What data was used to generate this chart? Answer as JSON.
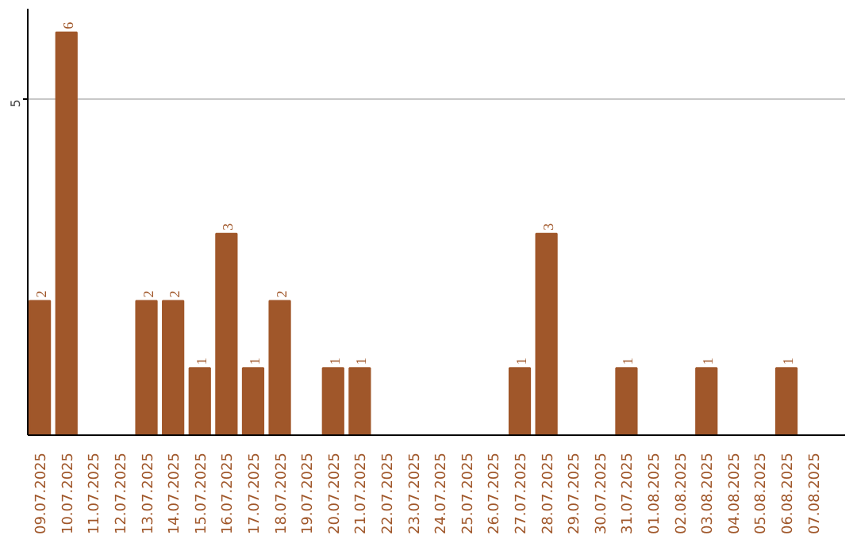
{
  "chart_data": {
    "type": "bar",
    "categories": [
      "09.07.2025",
      "10.07.2025",
      "11.07.2025",
      "12.07.2025",
      "13.07.2025",
      "14.07.2025",
      "15.07.2025",
      "16.07.2025",
      "17.07.2025",
      "18.07.2025",
      "19.07.2025",
      "20.07.2025",
      "21.07.2025",
      "22.07.2025",
      "23.07.2025",
      "24.07.2025",
      "25.07.2025",
      "26.07.2025",
      "27.07.2025",
      "28.07.2025",
      "29.07.2025",
      "30.07.2025",
      "31.07.2025",
      "01.08.2025",
      "02.08.2025",
      "03.08.2025",
      "04.08.2025",
      "05.08.2025",
      "06.08.2025",
      "07.08.2025"
    ],
    "values": [
      2,
      6,
      0,
      0,
      2,
      2,
      1,
      3,
      1,
      2,
      0,
      1,
      1,
      0,
      0,
      0,
      0,
      0,
      1,
      3,
      0,
      0,
      1,
      0,
      0,
      1,
      0,
      0,
      1,
      0
    ],
    "value_labels": [
      "2",
      "6",
      null,
      null,
      "2",
      "2",
      "1",
      "3",
      "1",
      "2",
      null,
      "1",
      "1",
      null,
      null,
      null,
      null,
      null,
      "1",
      "3",
      null,
      null,
      "1",
      null,
      null,
      "1",
      null,
      null,
      "1",
      null
    ],
    "color": "#a0572a",
    "ylim": [
      0,
      6.35
    ],
    "yticks": [
      5
    ],
    "grid": "y"
  }
}
